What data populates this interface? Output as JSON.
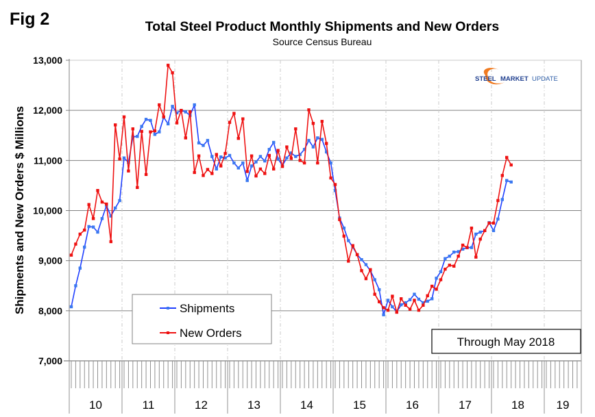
{
  "figure_label": "Fig 2",
  "logo": {
    "word1": "STEEL",
    "word2": "MARKET",
    "word3": "UPDATE"
  },
  "colors": {
    "shipments": "#1f3fff",
    "shipments_marker": "#3a78f0",
    "new_orders": "#ee1111",
    "grid": "#808080"
  },
  "chart_data": {
    "type": "line",
    "title": "Total Steel Product Monthly Shipments and New Orders",
    "subtitle": "Source Census Bureau",
    "xlabel": "",
    "ylabel": "Shipments and New Orders $ Millions",
    "ylim": [
      7000,
      13000
    ],
    "yticks": [
      7000,
      8000,
      9000,
      10000,
      11000,
      12000,
      13000
    ],
    "ytick_labels": [
      "7,000",
      "8,000",
      "9,000",
      "10,000",
      "11,000",
      "12,000",
      "13,000"
    ],
    "x_unit": "month",
    "x_start": "Jan 2010",
    "x_end": "May 2018",
    "x_axis_years": [
      "10",
      "11",
      "12",
      "13",
      "14",
      "15",
      "16",
      "17",
      "18",
      "19"
    ],
    "grid": "horizontal solid at each y tick, vertical dashed at year boundaries",
    "legend": {
      "position": "bottom-left",
      "entries": [
        "Shipments",
        "New Orders"
      ]
    },
    "annotation": "Through May 2018",
    "series": [
      {
        "name": "Shipments",
        "values": [
          8080,
          8500,
          8850,
          9270,
          9680,
          9670,
          9570,
          9840,
          10100,
          9890,
          10050,
          10200,
          11050,
          10960,
          11470,
          11480,
          11680,
          11820,
          11800,
          11520,
          11570,
          11860,
          11730,
          12080,
          11950,
          12000,
          11970,
          11900,
          12110,
          11350,
          11300,
          11400,
          11080,
          10830,
          11070,
          11050,
          11100,
          10950,
          10850,
          10950,
          10600,
          10890,
          10970,
          11080,
          10990,
          11220,
          11360,
          11030,
          10900,
          11050,
          11150,
          11080,
          11120,
          11220,
          11400,
          11270,
          11450,
          11420,
          11170,
          10950,
          10400,
          9850,
          9650,
          9400,
          9270,
          9120,
          9020,
          8920,
          8800,
          8620,
          8420,
          7920,
          8210,
          8080,
          7980,
          8120,
          8160,
          8220,
          8330,
          8230,
          8160,
          8190,
          8240,
          8650,
          8780,
          9040,
          9090,
          9170,
          9180,
          9230,
          9260,
          9260,
          9530,
          9570,
          9600,
          9760,
          9600,
          9830,
          10220,
          10600,
          10570
        ]
      },
      {
        "name": "New Orders",
        "values": [
          9110,
          9330,
          9530,
          9610,
          10120,
          9840,
          10400,
          10170,
          10130,
          9380,
          11710,
          11030,
          11870,
          10790,
          11630,
          10460,
          11580,
          10720,
          11570,
          11590,
          12110,
          11870,
          12900,
          12750,
          11750,
          12000,
          11450,
          11970,
          10760,
          11090,
          10700,
          10820,
          10740,
          11120,
          10890,
          11140,
          11760,
          11940,
          11440,
          11830,
          10780,
          11090,
          10690,
          10830,
          10740,
          11100,
          10830,
          11200,
          10880,
          11270,
          11040,
          11630,
          11000,
          10950,
          12010,
          11740,
          10950,
          11780,
          11340,
          10650,
          10520,
          9820,
          9490,
          8990,
          9300,
          9120,
          8800,
          8640,
          8820,
          8330,
          8180,
          8060,
          8010,
          8290,
          7970,
          8240,
          8110,
          8030,
          8210,
          8010,
          8110,
          8300,
          8490,
          8430,
          8620,
          8830,
          8910,
          8890,
          9090,
          9310,
          9260,
          9650,
          9070,
          9430,
          9600,
          9750,
          9750,
          10200,
          10700,
          11060,
          10910
        ]
      }
    ]
  }
}
